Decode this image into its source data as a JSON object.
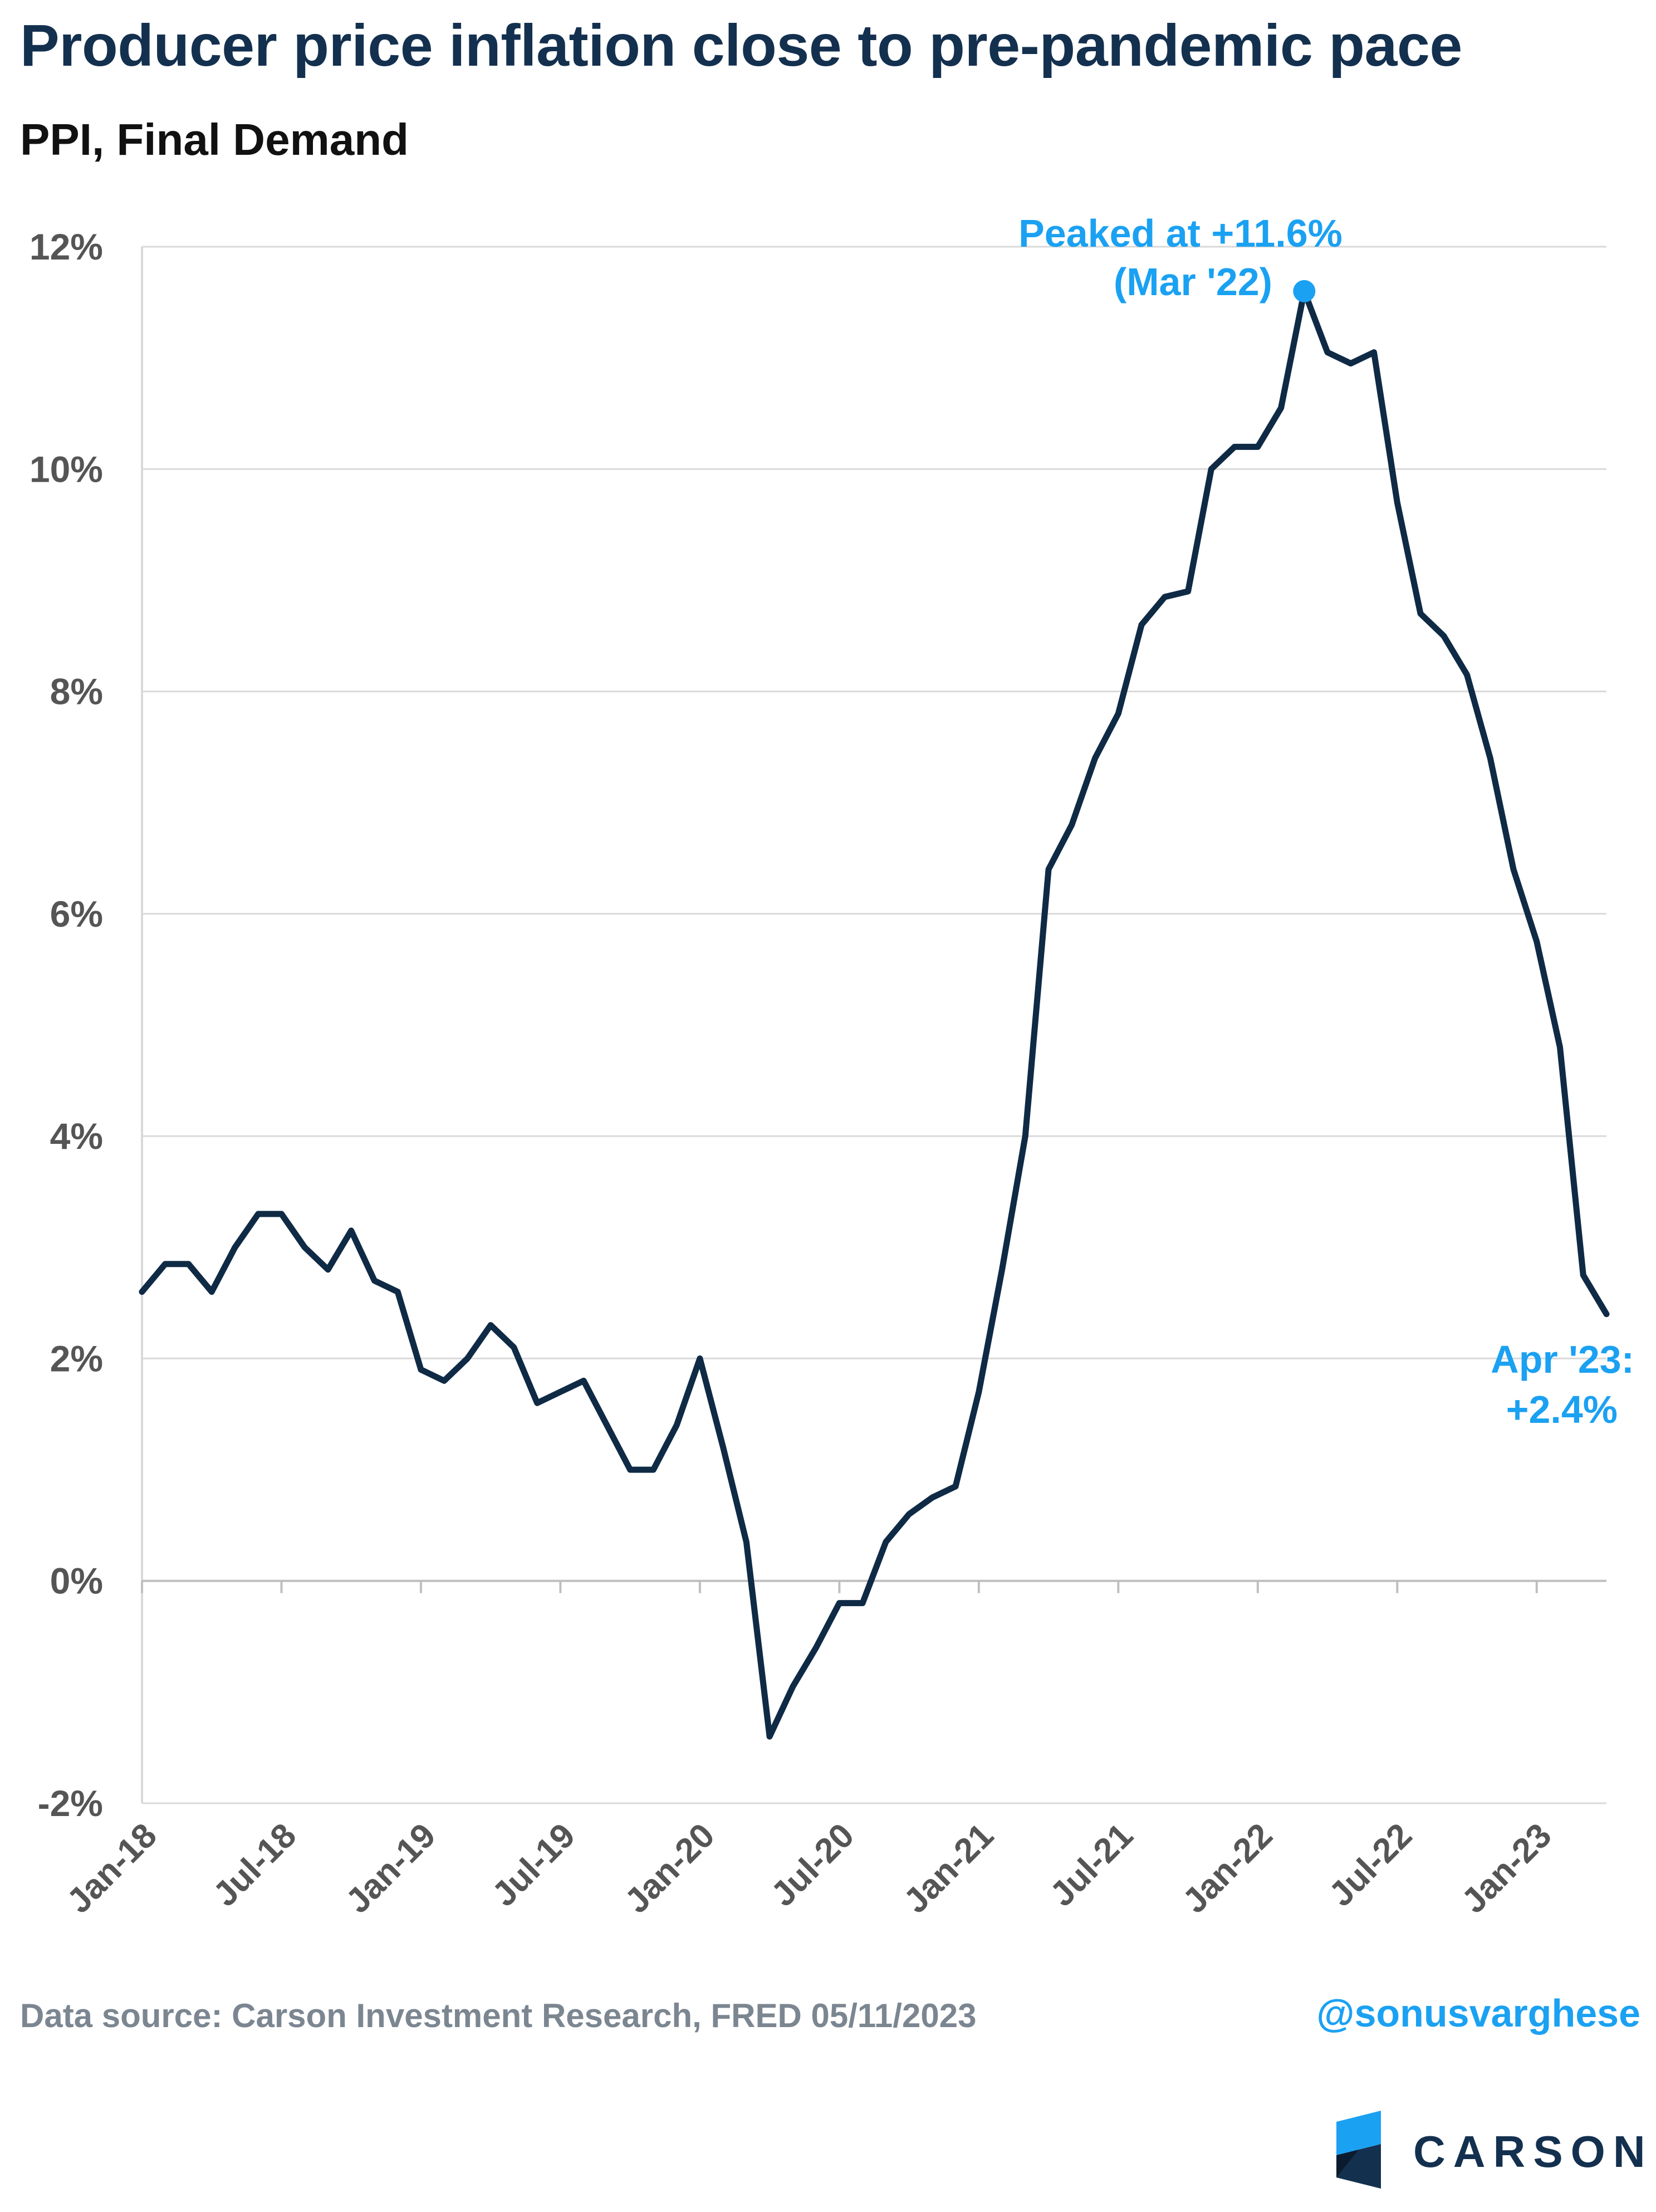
{
  "header": {
    "title": "Producer price inflation close to pre-pandemic pace",
    "subtitle": "PPI, Final Demand"
  },
  "footer": {
    "source": "Data source: Carson Investment Research, FRED   05/11/2023",
    "handle": "@sonusvarghese",
    "logo_text": "CARSON"
  },
  "colors": {
    "line": "#0f2a45",
    "accent": "#1ba1f2",
    "title": "#14304f",
    "grid": "#d9d9d9",
    "axis_text": "#555555"
  },
  "chart_data": {
    "type": "line",
    "title": "Producer price inflation close to pre-pandemic pace",
    "subtitle": "PPI, Final Demand",
    "xlabel": "",
    "ylabel": "",
    "ylim": [
      -2,
      12
    ],
    "y_ticks": [
      -2,
      0,
      2,
      4,
      6,
      8,
      10,
      12
    ],
    "y_tick_labels": [
      "-2%",
      "0%",
      "2%",
      "4%",
      "6%",
      "8%",
      "10%",
      "12%"
    ],
    "x_tick_labels": [
      "Jan-18",
      "Jul-18",
      "Jan-19",
      "Jul-19",
      "Jan-20",
      "Jul-20",
      "Jan-21",
      "Jul-21",
      "Jan-22",
      "Jul-22",
      "Jan-23"
    ],
    "x_tick_index": [
      0,
      6,
      12,
      18,
      24,
      30,
      36,
      42,
      48,
      54,
      60
    ],
    "grid": "horizontal",
    "series": [
      {
        "values": [
          2.6,
          2.85,
          2.85,
          2.6,
          3.0,
          3.3,
          3.3,
          3.0,
          2.8,
          3.15,
          2.7,
          2.6,
          1.9,
          1.8,
          2.0,
          2.3,
          2.1,
          1.6,
          1.7,
          1.8,
          1.4,
          1.0,
          1.0,
          1.4,
          2.0,
          1.2,
          0.35,
          -1.4,
          -0.95,
          -0.6,
          -0.2,
          -0.2,
          0.35,
          0.6,
          0.75,
          0.85,
          1.7,
          2.8,
          4.0,
          6.4,
          6.8,
          7.4,
          7.8,
          8.6,
          8.85,
          8.9,
          10.0,
          10.2,
          10.2,
          10.55,
          11.6,
          11.05,
          10.95,
          11.05,
          9.7,
          8.7,
          8.5,
          8.15,
          7.4,
          6.4,
          5.75,
          4.8,
          2.75,
          2.4
        ]
      }
    ],
    "annotations": [
      {
        "label_lines": [
          "Peaked at +11.6%",
          "(Mar '22)"
        ],
        "point_index": 50,
        "value": 11.6
      },
      {
        "label_lines": [
          "Apr '23:",
          "+2.4%"
        ],
        "point_index": 63,
        "value": 2.4
      }
    ]
  }
}
